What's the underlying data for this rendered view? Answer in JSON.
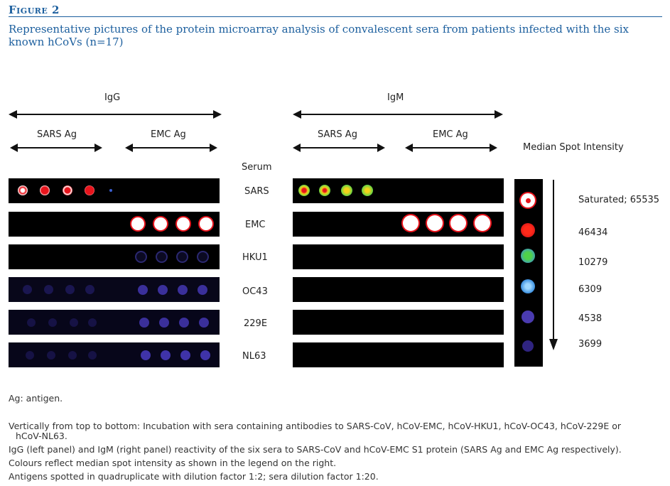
{
  "figure": {
    "label": "Figure 2",
    "caption": "Representative pictures of the protein microarray analysis of convalescent sera from patients infected with the six known hCoVs (n=17)"
  },
  "headers": {
    "igg": "IgG",
    "igm": "IgM",
    "sars_ag": "SARS Ag",
    "emc_ag": "EMC Ag",
    "serum": "Serum",
    "legend_title": "Median Spot Intensity"
  },
  "sera": [
    "SARS",
    "EMC",
    "HKU1",
    "OC43",
    "229E",
    "NL63"
  ],
  "legend": {
    "values": [
      "Saturated; 65535",
      "46434",
      "10279",
      "6309",
      "4538",
      "3699"
    ]
  },
  "notes": {
    "ag": "Ag: antigen.",
    "line1": "Vertically from top to bottom: Incubation with sera containing antibodies to SARS-CoV, hCoV-EMC, hCoV-HKU1, hCoV-OC43, hCoV-229E or",
    "line1b": "hCoV-NL63.",
    "line2": "IgG (left panel) and IgM (right panel) reactivity of the six sera to SARS-CoV and hCoV-EMC S1 protein (SARS Ag and EMC Ag respectively).",
    "line3": "Colours reflect median spot intensity as shown in the legend on the right.",
    "line4": "Antigens spotted in quadruplicate with dilution factor 1:2; sera dilution factor 1:20."
  },
  "colors": {
    "accent": "#1c5f9e",
    "saturated": "#ffffff",
    "high_red": "#e8141c",
    "mid_green": "#4fd24a",
    "mid_blue": "#3b8fe0",
    "low_purple": "#4a3bb0",
    "faint": "#221a55"
  }
}
